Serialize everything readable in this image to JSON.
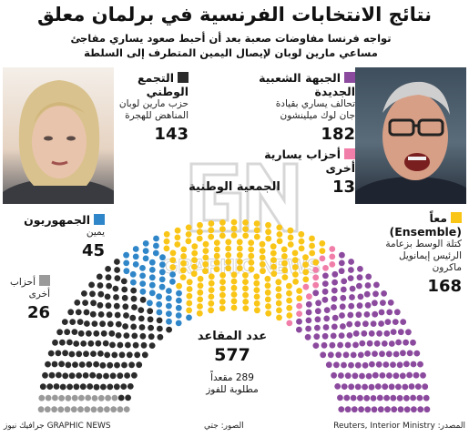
{
  "title": "نتائج الانتخابات الفرنسية في برلمان معلق",
  "subtitle_line1": "تواجه فرنسا مفاوضات صعبة بعد أن أحبط صعود يساري مفاجئ",
  "subtitle_line2": "مساعي مارين لوبان لإيصال اليمين المتطرف إلى السلطة",
  "center_label": "الجمعية الوطنية",
  "seats_label": "عدد المقاعد",
  "seats_total": "577",
  "majority_line1": "289 مقعداً",
  "majority_line2": "مطلوبة للفوز",
  "footer": {
    "source": "المصدر: Reuters, Interior Ministry",
    "photos": "الصور: جتي",
    "brand": "GRAPHIC NEWS جرافيك نيوز"
  },
  "chart_data": {
    "type": "parliament",
    "total": 577,
    "majority": 289,
    "series": [
      {
        "name": "أحزاب أخرى",
        "desc": "",
        "value": 26,
        "color": "#9a9a9a"
      },
      {
        "name": "التجمع الوطني",
        "desc": "حزب مارين لوبان المناهض للهجرة",
        "value": 143,
        "color": "#2b2b2b"
      },
      {
        "name": "الجمهوريون",
        "desc": "يمين",
        "value": 45,
        "color": "#2f86c8"
      },
      {
        "name": "معاً (Ensemble)",
        "desc": "كتلة الوسط بزعامة الرئيس إيمانويل ماكرون",
        "value": 168,
        "color": "#f9c516"
      },
      {
        "name": "أحزاب يسارية أخرى",
        "desc": "",
        "value": 13,
        "color": "#f07ea8"
      },
      {
        "name": "الجبهة الشعبية الجديدة",
        "desc": "تحالف يساري بقيادة جان لوك ميلينشون",
        "value": 182,
        "color": "#8b4a9e"
      }
    ]
  },
  "labels": {
    "others_name1": "أحزاب",
    "others_name2": "أخرى",
    "rn_desc1": "حزب مارين لوبان",
    "rn_desc2": "المناهض للهجرة",
    "lr_desc": "يمين",
    "ens_desc1": "كتلة الوسط بزعامة",
    "ens_desc2": "الرئيس إيمانويل",
    "ens_desc3": "ماكرون",
    "nfp_desc1": "تحالف يساري بقيادة",
    "nfp_desc2": "جان لوك ميلينشون"
  }
}
